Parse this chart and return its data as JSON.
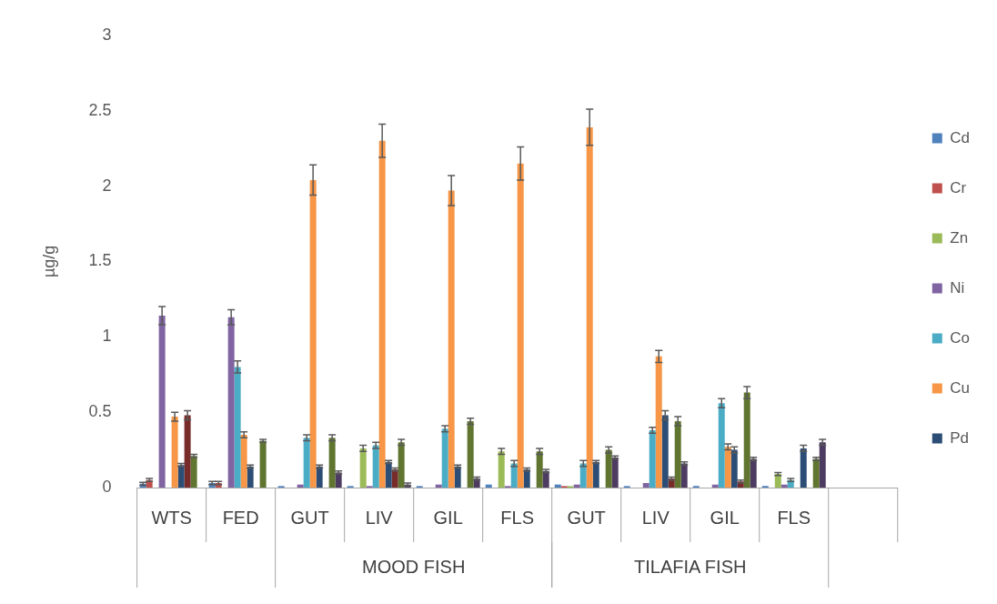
{
  "chart_data": {
    "type": "bar",
    "ylabel": "µg/g",
    "categories": [
      "WTS",
      "FED",
      "GUT",
      "LIV",
      "GIL",
      "FLS",
      "GUT",
      "LIV",
      "GIL",
      "FLS",
      null
    ],
    "annotations": [
      "MOOD FISH",
      "TILAFIA FISH"
    ],
    "ylim": [
      0,
      3
    ],
    "yticks": [
      0,
      0.5,
      1,
      1.5,
      2,
      2.5,
      3
    ],
    "grid": false,
    "legend": "right",
    "series": [
      {
        "name": "Cd",
        "color": "#4f81bd",
        "values": [
          0.025,
          0.03,
          0.01,
          0.01,
          0.01,
          0.02,
          0.02,
          0.01,
          0.01,
          0.01,
          null
        ],
        "errors": [
          0.01,
          0.01,
          null,
          null,
          null,
          null,
          null,
          null,
          null,
          null,
          null
        ]
      },
      {
        "name": "Cr",
        "color": "#c0504d",
        "values": [
          0.05,
          0.03,
          0,
          0,
          0,
          0,
          0.01,
          0,
          0,
          0,
          null
        ],
        "errors": [
          0.01,
          0.01,
          null,
          null,
          null,
          null,
          null,
          null,
          null,
          null,
          null
        ]
      },
      {
        "name": "Zn",
        "color": "#9bbb59",
        "values": [
          0,
          0,
          0,
          0.26,
          0,
          0.24,
          0.01,
          0,
          0,
          0.09,
          null
        ],
        "errors": [
          null,
          null,
          null,
          0.02,
          null,
          0.02,
          null,
          null,
          null,
          0.01,
          null
        ]
      },
      {
        "name": "Ni",
        "color": "#8064a2",
        "values": [
          1.14,
          1.13,
          0.02,
          0.01,
          0.02,
          0.01,
          0.02,
          0.03,
          0.02,
          0.02,
          null
        ],
        "errors": [
          0.06,
          0.05,
          null,
          null,
          null,
          null,
          null,
          null,
          null,
          null,
          null
        ]
      },
      {
        "name": "Co",
        "color": "#4bacc6",
        "values": [
          0,
          0.8,
          0.33,
          0.28,
          0.39,
          0.16,
          0.16,
          0.38,
          0.56,
          0.05,
          null
        ],
        "errors": [
          null,
          0.04,
          0.02,
          0.02,
          0.02,
          0.02,
          0.02,
          0.02,
          0.03,
          0.01,
          null
        ]
      },
      {
        "name": "Cu",
        "color": "#f79646",
        "values": [
          0.47,
          0.35,
          2.04,
          2.3,
          1.97,
          2.15,
          2.39,
          0.87,
          0.27,
          0,
          null
        ],
        "errors": [
          0.03,
          0.02,
          0.1,
          0.11,
          0.1,
          0.11,
          0.12,
          0.04,
          0.02,
          null,
          null
        ]
      },
      {
        "name": "Pd",
        "color": "#2c4d75",
        "values": [
          0.15,
          0.14,
          0.14,
          0.17,
          0.14,
          0.12,
          0.17,
          0.48,
          0.25,
          0.26,
          null
        ],
        "errors": [
          0.01,
          0.01,
          0.01,
          0.01,
          0.01,
          0.01,
          0.01,
          0.03,
          0.02,
          0.02,
          null
        ]
      },
      {
        "color": "#772c2a",
        "values": [
          0.48,
          0,
          0,
          0.12,
          0,
          0,
          0,
          0.06,
          0.04,
          0,
          null
        ],
        "errors": [
          0.03,
          null,
          null,
          0.01,
          null,
          null,
          null,
          0.01,
          0.01,
          null,
          null
        ]
      },
      {
        "color": "#5f7530",
        "values": [
          0.21,
          0.31,
          0.33,
          0.3,
          0.44,
          0.24,
          0.25,
          0.44,
          0.63,
          0.19,
          null
        ],
        "errors": [
          0.01,
          0.01,
          0.02,
          0.02,
          0.02,
          0.02,
          0.02,
          0.03,
          0.04,
          0.01,
          null
        ]
      },
      {
        "color": "#4d3b62",
        "values": [
          0,
          0,
          0.1,
          0.02,
          0.06,
          0.11,
          0.2,
          0.16,
          0.19,
          0.3,
          null
        ],
        "errors": [
          null,
          null,
          0.01,
          0.01,
          0.01,
          0.01,
          0.01,
          0.01,
          0.01,
          0.02,
          null
        ]
      }
    ]
  }
}
